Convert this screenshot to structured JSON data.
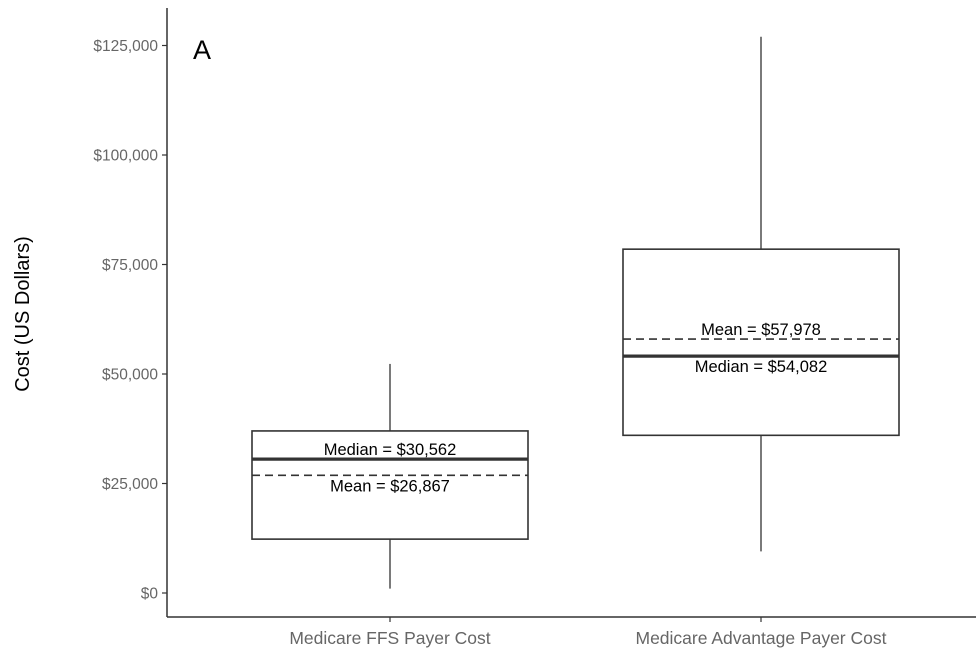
{
  "chart_data": {
    "type": "box",
    "panel_label": "A",
    "ylabel": "Cost (US Dollars)",
    "ylim": [
      -5000,
      135000
    ],
    "y_ticks": [
      0,
      25000,
      50000,
      75000,
      100000,
      125000
    ],
    "y_tick_labels": [
      "$0",
      "$25,000",
      "$50,000",
      "$75,000",
      "$100,000",
      "$125,000"
    ],
    "categories": [
      "Medicare FFS Payer Cost",
      "Medicare Advantage Payer Cost"
    ],
    "boxes": [
      {
        "category": "Medicare FFS Payer Cost",
        "whisker_low": 1000,
        "q1": 12300,
        "median": 30562,
        "mean": 26867,
        "q3": 37000,
        "whisker_high": 52300,
        "median_label": "Median = $30,562",
        "mean_label": "Mean = $26,867"
      },
      {
        "category": "Medicare Advantage Payer Cost",
        "whisker_low": 9500,
        "q1": 36000,
        "median": 54082,
        "mean": 57978,
        "q3": 78500,
        "whisker_high": 127000,
        "median_label": "Median = $54,082",
        "mean_label": "Mean = $57,978"
      }
    ],
    "grid": false,
    "colors": {
      "box": "#333333",
      "axis": "#333333",
      "tick_text": "#666666"
    }
  }
}
